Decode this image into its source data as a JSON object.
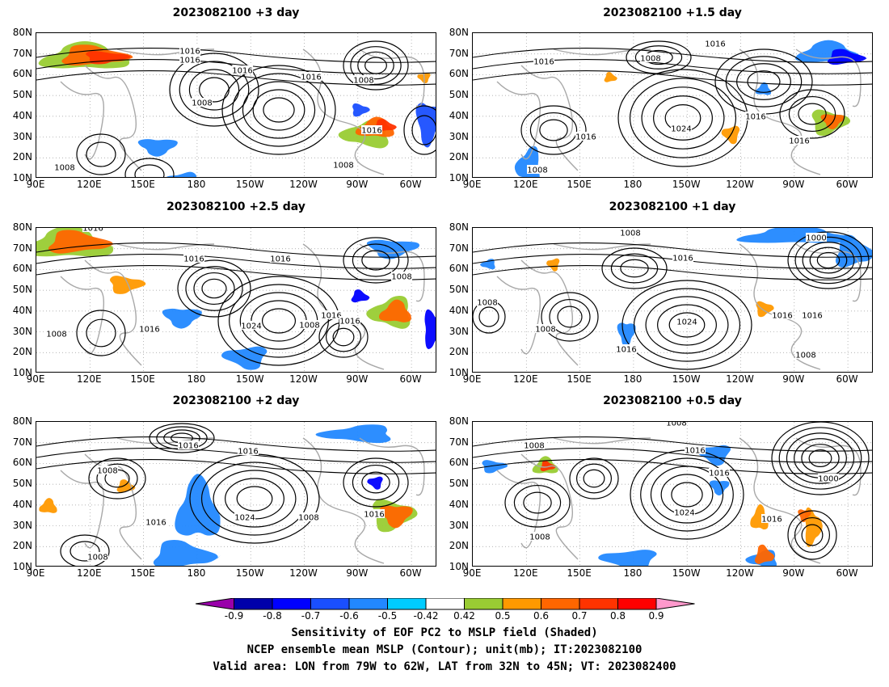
{
  "panels": [
    {
      "title": "2023082100 +3 day"
    },
    {
      "title": "2023082100 +1.5 day"
    },
    {
      "title": "2023082100 +2.5 day"
    },
    {
      "title": "2023082100 +1 day"
    },
    {
      "title": "2023082100 +2 day"
    },
    {
      "title": "2023082100 +0.5 day"
    }
  ],
  "axes": {
    "lat_labels": [
      "80N",
      "70N",
      "60N",
      "50N",
      "40N",
      "30N",
      "20N",
      "10N"
    ],
    "lon_labels": [
      "90E",
      "120E",
      "150E",
      "180",
      "150W",
      "120W",
      "90W",
      "60W"
    ]
  },
  "contour_labels": {
    "panel_0": [
      "1016",
      "1016",
      "1016",
      "1016",
      "1008",
      "1008",
      "1016",
      "1008",
      "1008"
    ],
    "panel_1": [
      "1016",
      "1016",
      "1008",
      "1024",
      "1016",
      "1016",
      "1016",
      "1008"
    ],
    "panel_2": [
      "1016",
      "1016",
      "1016",
      "1016",
      "1024",
      "1008",
      "1016",
      "1016",
      "1008",
      "1008"
    ],
    "panel_3": [
      "1008",
      "1016",
      "1000",
      "1008",
      "1008",
      "1024",
      "1016",
      "1016",
      "1016",
      "1008"
    ],
    "panel_4": [
      "1016",
      "1016",
      "1008",
      "1016",
      "1024",
      "1008",
      "1016",
      "1008"
    ],
    "panel_5": [
      "1008",
      "1008",
      "1016",
      "1016",
      "1000",
      "1024",
      "1016",
      "1008"
    ]
  },
  "colorbar": {
    "colors": [
      "#9900aa",
      "#0000aa",
      "#0000ff",
      "#1a4fff",
      "#2288ff",
      "#00ccff",
      "#ffffff",
      "#99cc33",
      "#ff9900",
      "#ff6600",
      "#ff3300",
      "#ff0000",
      "#ff99cc"
    ],
    "labels": [
      "-0.9",
      "-0.8",
      "-0.7",
      "-0.6",
      "-0.5",
      "-0.42",
      "0.42",
      "0.5",
      "0.6",
      "0.7",
      "0.8",
      "0.9"
    ]
  },
  "caption": [
    "Sensitivity of EOF PC2 to MSLP field (Shaded)",
    "NCEP ensemble mean MSLP (Contour); unit(mb); IT:2023082100",
    "Valid area: LON from 79W to 62W, LAT from 32N to 45N; VT: 2023082400"
  ]
}
